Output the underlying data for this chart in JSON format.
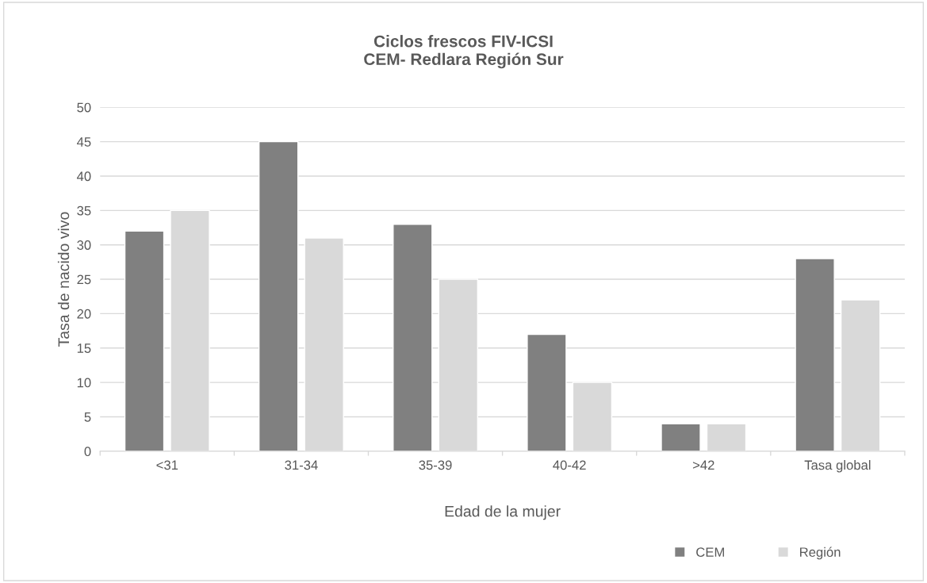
{
  "chart_data": {
    "type": "bar",
    "title": "Ciclos frescos FIV-ICSI\nCEM- Redlara Región Sur",
    "xlabel": "Edad de la mujer",
    "ylabel": "Tasa de nacido vivo",
    "categories": [
      "<31",
      "31-34",
      "35-39",
      "40-42",
      ">42",
      "Tasa global"
    ],
    "series": [
      {
        "name": "CEM",
        "color": "#808080",
        "values": [
          32,
          45,
          33,
          17,
          4,
          28
        ]
      },
      {
        "name": "Región",
        "color": "#d9d9d9",
        "values": [
          35,
          31,
          25,
          10,
          4,
          22
        ]
      }
    ],
    "ylim": [
      0,
      50
    ],
    "yticks": [
      0,
      5,
      10,
      15,
      20,
      25,
      30,
      35,
      40,
      45,
      50
    ],
    "grid": "y",
    "legend": "bottom right"
  }
}
